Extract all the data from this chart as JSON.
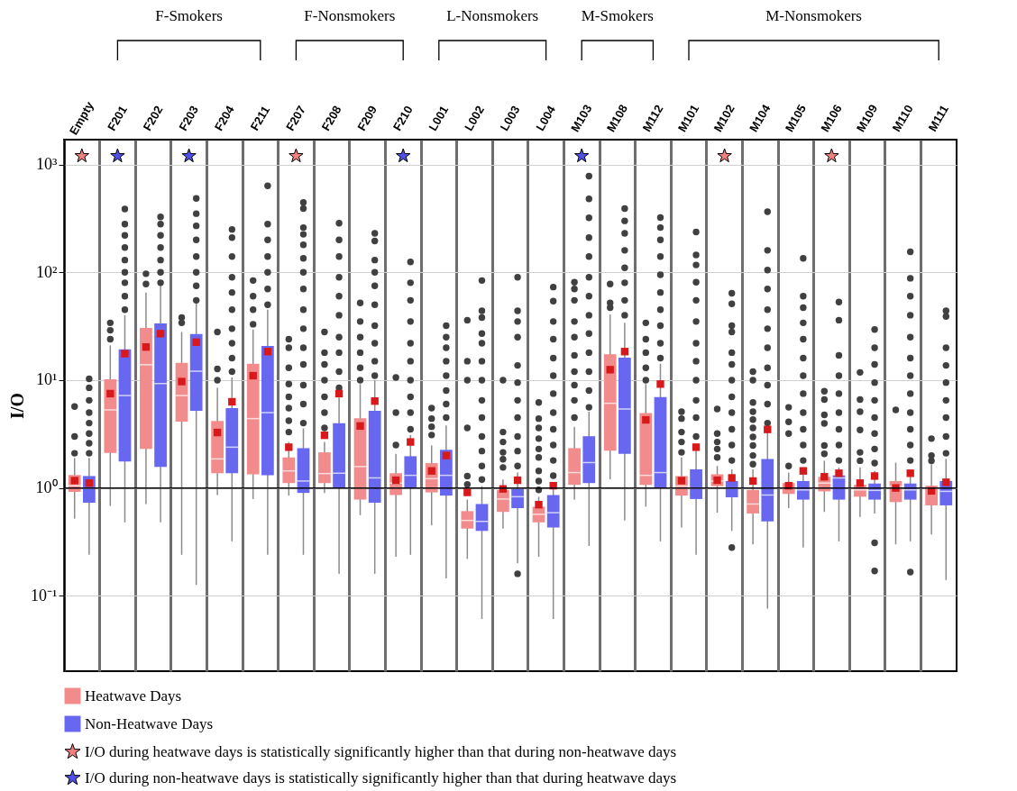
{
  "chart_data": {
    "type": "box",
    "ylabel": "I/O",
    "categories": [
      "Empty",
      "F201",
      "F202",
      "F203",
      "F204",
      "F211",
      "F207",
      "F208",
      "F209",
      "F210",
      "L001",
      "L002",
      "L003",
      "L004",
      "M103",
      "M108",
      "M112",
      "M101",
      "M102",
      "M104",
      "M105",
      "M106",
      "M109",
      "M110",
      "M111"
    ],
    "annotations": [
      "F-Smokers",
      "F-Nonsmokers",
      "L-Nonsmokers",
      "M-Smokers",
      "M-Nonsmokers"
    ],
    "ylim": [
      0.02,
      1700
    ],
    "yticks": [
      {
        "value": 0.1,
        "label": "10⁻¹"
      },
      {
        "value": 1,
        "label": "10⁰"
      },
      {
        "value": 10,
        "label": "10¹"
      },
      {
        "value": 100,
        "label": "10²"
      },
      {
        "value": 1000,
        "label": "10³"
      }
    ],
    "grid": true,
    "legend": "bottom",
    "log": true,
    "ref_lines": [
      {
        "axis": "y",
        "value": 1,
        "color": "#000000"
      }
    ],
    "series": [
      {
        "name": "Heatwave Days",
        "type": "box",
        "color": "#f28b8b",
        "boxes": [
          {
            "low": 0.52,
            "q1": 0.92,
            "median": 1.05,
            "q3": 1.32,
            "high": 1.9,
            "mean": 1.17,
            "outliers": [
              2.1,
              3,
              5.7
            ]
          },
          {
            "low": 0.68,
            "q1": 2.11,
            "median": 5.3,
            "q3": 10.2,
            "high": 21,
            "mean": 7.5,
            "outliers": [
              24,
              29,
              34
            ]
          },
          {
            "low": 0.71,
            "q1": 2.31,
            "median": 13.9,
            "q3": 30.5,
            "high": 65,
            "mean": 20.3,
            "outliers": [
              78,
              97
            ]
          },
          {
            "low": 0.24,
            "q1": 4.13,
            "median": 7.2,
            "q3": 14.5,
            "high": 28,
            "mean": 9.7,
            "outliers": [
              34,
              38
            ]
          },
          {
            "low": 0.86,
            "q1": 1.37,
            "median": 1.86,
            "q3": 4.18,
            "high": 8.5,
            "mean": 3.27,
            "outliers": [
              10,
              12.7,
              28
            ]
          },
          {
            "low": 0.79,
            "q1": 1.34,
            "median": 4.4,
            "q3": 14.2,
            "high": 29.5,
            "mean": 11,
            "outliers": [
              33,
              45,
              60,
              84
            ]
          },
          {
            "low": 0.85,
            "q1": 1.11,
            "median": 1.44,
            "q3": 1.92,
            "high": 2.67,
            "mean": 2.39,
            "outliers": [
              3.3,
              4.2,
              5.5,
              7,
              9.2,
              13,
              20,
              24
            ]
          },
          {
            "low": 0.9,
            "q1": 1.11,
            "median": 1.36,
            "q3": 2.14,
            "high": 2.67,
            "mean": 3.08,
            "outliers": [
              3.6,
              5,
              7,
              10,
              14,
              18,
              28
            ]
          },
          {
            "low": 0.56,
            "q1": 0.78,
            "median": 1.58,
            "q3": 4.44,
            "high": 9.2,
            "mean": 3.76,
            "outliers": [
              10,
              13,
              18,
              25,
              35,
              52
            ]
          },
          {
            "low": 0.23,
            "q1": 0.86,
            "median": 1.11,
            "q3": 1.37,
            "high": 2.07,
            "mean": 1.18,
            "outliers": [
              2.5,
              5,
              10.6
            ]
          },
          {
            "low": 0.45,
            "q1": 0.91,
            "median": 1.22,
            "q3": 1.7,
            "high": 2.48,
            "mean": 1.44,
            "outliers": [
              3.1,
              3.7,
              4.4,
              5.5
            ]
          },
          {
            "low": 0.22,
            "q1": 0.42,
            "median": 0.5,
            "q3": 0.61,
            "high": 0.78,
            "mean": 0.91,
            "outliers": [
              1.08,
              1.29,
              3.6,
              10,
              15,
              36
            ]
          },
          {
            "low": 0.42,
            "q1": 0.6,
            "median": 0.79,
            "q3": 0.96,
            "high": 1.2,
            "mean": 0.98,
            "outliers": [
              1.55,
              1.85,
              2.14,
              2.67,
              3.3,
              10
            ]
          },
          {
            "low": 0.23,
            "q1": 0.48,
            "median": 0.57,
            "q3": 0.67,
            "high": 0.83,
            "mean": 0.7,
            "outliers": [
              0.96,
              1.16,
              1.44,
              1.92,
              2.3,
              2.87,
              3.6,
              4.4,
              6.2
            ]
          },
          {
            "low": 0.78,
            "q1": 1.07,
            "median": 1.39,
            "q3": 2.34,
            "high": 3.7,
            "outliers": [
              4.5,
              6.5,
              9,
              12,
              17,
              25,
              35,
              55,
              70,
              81
            ]
          },
          {
            "low": 1.2,
            "q1": 2.22,
            "median": 6.1,
            "q3": 17.4,
            "high": 40.6,
            "mean": 12.5,
            "outliers": [
              47,
              52,
              78
            ]
          },
          {
            "low": 0.67,
            "q1": 1.07,
            "median": 1.31,
            "q3": 4.95,
            "high": 9.2,
            "mean": 4.28,
            "outliers": [
              10,
              13,
              18,
              24,
              34
            ]
          },
          {
            "low": 0.43,
            "q1": 0.85,
            "median": 1.04,
            "q3": 1.29,
            "high": 1.92,
            "mean": 1.17,
            "outliers": [
              2.14,
              2.67,
              3.3,
              4.4,
              5.1
            ]
          },
          {
            "low": 0.59,
            "q1": 1.04,
            "median": 1.16,
            "q3": 1.34,
            "high": 1.6,
            "mean": 1.18,
            "outliers": [
              1.92,
              2.3,
              2.67,
              3.2,
              5.4
            ]
          },
          {
            "low": 0.3,
            "q1": 0.58,
            "median": 0.71,
            "q3": 0.96,
            "high": 1.49,
            "mean": 1.16,
            "outliers": [
              1.66,
              2,
              2.48,
              2.97,
              3.6,
              4.3,
              5.1,
              6.2,
              10,
              12
            ]
          },
          {
            "low": 0.65,
            "q1": 0.88,
            "median": 1.0,
            "q3": 1.11,
            "high": 1.39,
            "mean": 1.05,
            "outliers": [
              1.6,
              3.2,
              4.1,
              5.6
            ]
          },
          {
            "low": 0.6,
            "q1": 0.93,
            "median": 1.11,
            "q3": 1.27,
            "high": 1.79,
            "mean": 1.27,
            "outliers": [
              2.07,
              2.48,
              3.97,
              4.77,
              6.6,
              7.9
            ]
          },
          {
            "low": 0.54,
            "q1": 0.83,
            "median": 0.96,
            "q3": 1.07,
            "high": 1.55,
            "mean": 1.11,
            "outliers": [
              1.79,
              2.14,
              3.45,
              5.1,
              6.6,
              11.8
            ]
          },
          {
            "low": 0.3,
            "q1": 0.74,
            "median": 1.04,
            "q3": 1.16,
            "high": 1.72,
            "mean": 1.0,
            "outliers": [
              5.3
            ]
          },
          {
            "low": 0.37,
            "q1": 0.69,
            "median": 1.0,
            "q3": 1.05,
            "high": 1.66,
            "mean": 0.94,
            "outliers": [
              1.79,
              2.0,
              2.87
            ]
          }
        ]
      },
      {
        "name": "Non-Heatwave Days",
        "type": "box",
        "color": "#6767f0",
        "boxes": [
          {
            "low": 0.24,
            "q1": 0.73,
            "median": 1.0,
            "q3": 1.29,
            "high": 1.9,
            "mean": 1.11,
            "outliers": [
              2.1,
              2.6,
              3.2,
              4,
              5,
              6.5,
              8.5,
              10.3
            ]
          },
          {
            "low": 0.48,
            "q1": 1.76,
            "median": 7.2,
            "q3": 19.3,
            "high": 40,
            "mean": 17.6,
            "outliers": [
              45,
              60,
              80,
              100,
              130,
              170,
              220,
              280,
              387
            ]
          },
          {
            "low": 0.48,
            "q1": 1.57,
            "median": 9.3,
            "q3": 33.5,
            "high": 75,
            "mean": 27,
            "outliers": [
              80,
              100,
              130,
              170,
              220,
              280,
              327
            ]
          },
          {
            "low": 0.126,
            "q1": 5.2,
            "median": 12.1,
            "q3": 26.8,
            "high": 52,
            "mean": 22.5,
            "outliers": [
              55,
              75,
              100,
              140,
              200,
              270,
              350,
              485
            ]
          },
          {
            "low": 0.32,
            "q1": 1.37,
            "median": 2.39,
            "q3": 5.5,
            "high": 10.6,
            "mean": 6.3,
            "outliers": [
              12,
              16,
              22,
              30,
              45,
              65,
              90,
              140,
              210,
              250
            ]
          },
          {
            "low": 0.24,
            "q1": 1.31,
            "median": 5,
            "q3": 20.8,
            "high": 45,
            "mean": 18.4,
            "outliers": [
              50,
              70,
              100,
              140,
              200,
              280,
              635
            ]
          },
          {
            "low": 0.24,
            "q1": 0.9,
            "median": 1.16,
            "q3": 2.34,
            "high": 3.57,
            "outliers": [
              4,
              6,
              9,
              14,
              20,
              30,
              45,
              70,
              100,
              135,
              180,
              225,
              260,
              390,
              445
            ]
          },
          {
            "low": 0.16,
            "q1": 1.0,
            "median": 1.37,
            "q3": 3.98,
            "high": 6.9,
            "mean": 7.5,
            "outliers": [
              8.5,
              12,
              18,
              25,
              40,
              60,
              90,
              140,
              200,
              285
            ]
          },
          {
            "low": 0.16,
            "q1": 0.73,
            "median": 1.24,
            "q3": 5.2,
            "high": 10,
            "mean": 6.4,
            "outliers": [
              11,
              15,
              22,
              32,
              50,
              75,
              100,
              130,
              195,
              230
            ]
          },
          {
            "low": 0.24,
            "q1": 1.0,
            "median": 1.31,
            "q3": 1.97,
            "high": 3.1,
            "mean": 2.67,
            "outliers": [
              3.5,
              5,
              7,
              10,
              15,
              22,
              35,
              55,
              80,
              125
            ]
          },
          {
            "low": 0.145,
            "q1": 0.85,
            "median": 1.31,
            "q3": 2.26,
            "high": 3.8,
            "mean": 2.0,
            "outliers": [
              4.5,
              6,
              8,
              11,
              15,
              20,
              25,
              32
            ]
          },
          {
            "low": 0.061,
            "q1": 0.4,
            "median": 0.49,
            "q3": 0.71,
            "high": 1.04,
            "outliers": [
              1.2,
              1.6,
              2.2,
              3,
              4.5,
              6.5,
              10,
              15,
              22,
              27,
              38,
              44,
              84
            ]
          },
          {
            "low": 0.2,
            "q1": 0.65,
            "median": 0.83,
            "q3": 0.98,
            "high": 1.39,
            "mean": 1.18,
            "outliers": [
              0.16,
              1.6,
              2.2,
              3,
              4.5,
              6.5,
              9.5,
              13.7,
              25,
              35,
              44,
              90
            ]
          },
          {
            "low": 0.061,
            "q1": 0.43,
            "median": 0.59,
            "q3": 0.86,
            "high": 1.11,
            "mean": 1.05,
            "outliers": [
              1.3,
              1.8,
              2.5,
              3.5,
              5,
              7.5,
              11,
              16,
              24,
              35,
              54,
              73
            ]
          },
          {
            "low": 0.29,
            "q1": 1.11,
            "median": 1.72,
            "q3": 3.02,
            "high": 5.1,
            "outliers": [
              5.6,
              8,
              12,
              18,
              27,
              40,
              60,
              90,
              140,
              210,
              320,
              480,
              780
            ]
          },
          {
            "low": 0.5,
            "q1": 2.07,
            "median": 5.4,
            "q3": 16.2,
            "high": 34,
            "mean": 18.4,
            "outliers": [
              40,
              55,
              80,
              110,
              160,
              230,
              300,
              390
            ]
          },
          {
            "low": 0.32,
            "q1": 1.0,
            "median": 1.39,
            "q3": 6.97,
            "high": 14.2,
            "mean": 9.2,
            "outliers": [
              16,
              22,
              32,
              45,
              65,
              95,
              140,
              200,
              260,
              322
            ]
          },
          {
            "low": 0.24,
            "q1": 0.79,
            "median": 1.0,
            "q3": 1.49,
            "high": 2.3,
            "mean": 2.39,
            "outliers": [
              3,
              4.5,
              6.5,
              10,
              15,
              22,
              35,
              55,
              81,
              117,
              145,
              237
            ]
          },
          {
            "low": 0.4,
            "q1": 0.82,
            "median": 1.0,
            "q3": 1.16,
            "high": 1.49,
            "mean": 1.24,
            "outliers": [
              0.28,
              1.8,
              2.5,
              3.5,
              5,
              7,
              10,
              14,
              18,
              28,
              32,
              51,
              64
            ]
          },
          {
            "low": 0.076,
            "q1": 0.49,
            "median": 0.86,
            "q3": 1.86,
            "high": 3.3,
            "mean": 3.49,
            "outliers": [
              4,
              6,
              9,
              13,
              20,
              30,
              45,
              70,
              105,
              160,
              365
            ]
          },
          {
            "low": 0.28,
            "q1": 0.78,
            "median": 0.96,
            "q3": 1.16,
            "high": 1.55,
            "mean": 1.44,
            "outliers": [
              1.8,
              2.5,
              3.5,
              5,
              7.5,
              11,
              16,
              24,
              34,
              47,
              60,
              135
            ]
          },
          {
            "low": 0.32,
            "q1": 0.78,
            "median": 1.24,
            "q3": 1.31,
            "high": 1.55,
            "mean": 1.37,
            "outliers": [
              1.8,
              2.5,
              3.5,
              5,
              7.5,
              11,
              17,
              36,
              53
            ]
          },
          {
            "low": 0.58,
            "q1": 0.78,
            "median": 0.95,
            "q3": 1.1,
            "high": 1.44,
            "mean": 1.29,
            "outliers": [
              0.17,
              0.31,
              1.7,
              2.3,
              3.2,
              4.5,
              6.5,
              9.5,
              14,
              20,
              29.5
            ]
          },
          {
            "low": 0.32,
            "q1": 0.78,
            "median": 0.96,
            "q3": 1.1,
            "high": 1.49,
            "mean": 1.37,
            "outliers": [
              0.166,
              1.8,
              2.5,
              3.5,
              5,
              7.5,
              11,
              16,
              25,
              40,
              60,
              88,
              155
            ]
          },
          {
            "low": 0.14,
            "q1": 0.69,
            "median": 0.93,
            "q3": 1.16,
            "high": 1.86,
            "mean": 1.13,
            "outliers": [
              2.1,
              3,
              4.5,
              6.5,
              9.5,
              13.7,
              20,
              39,
              44
            ]
          }
        ]
      },
      {
        "name": "I/O during heatwave days is statistically significantly higher than that during non-heatwave days",
        "type": "scatter",
        "marker": "star",
        "color": "#f07f7f",
        "x": [
          "Empty",
          "F207",
          "M102",
          "M106"
        ],
        "values": [
          1200,
          1200,
          1200,
          1200
        ]
      },
      {
        "name": "I/O during non-heatwave days is statistically significantly higher than that during heatwave days",
        "type": "scatter",
        "marker": "star",
        "color": "#5050e8",
        "x": [
          "F201",
          "F203",
          "F210",
          "M103"
        ],
        "values": [
          1200,
          1200,
          1200,
          1200
        ]
      }
    ]
  }
}
